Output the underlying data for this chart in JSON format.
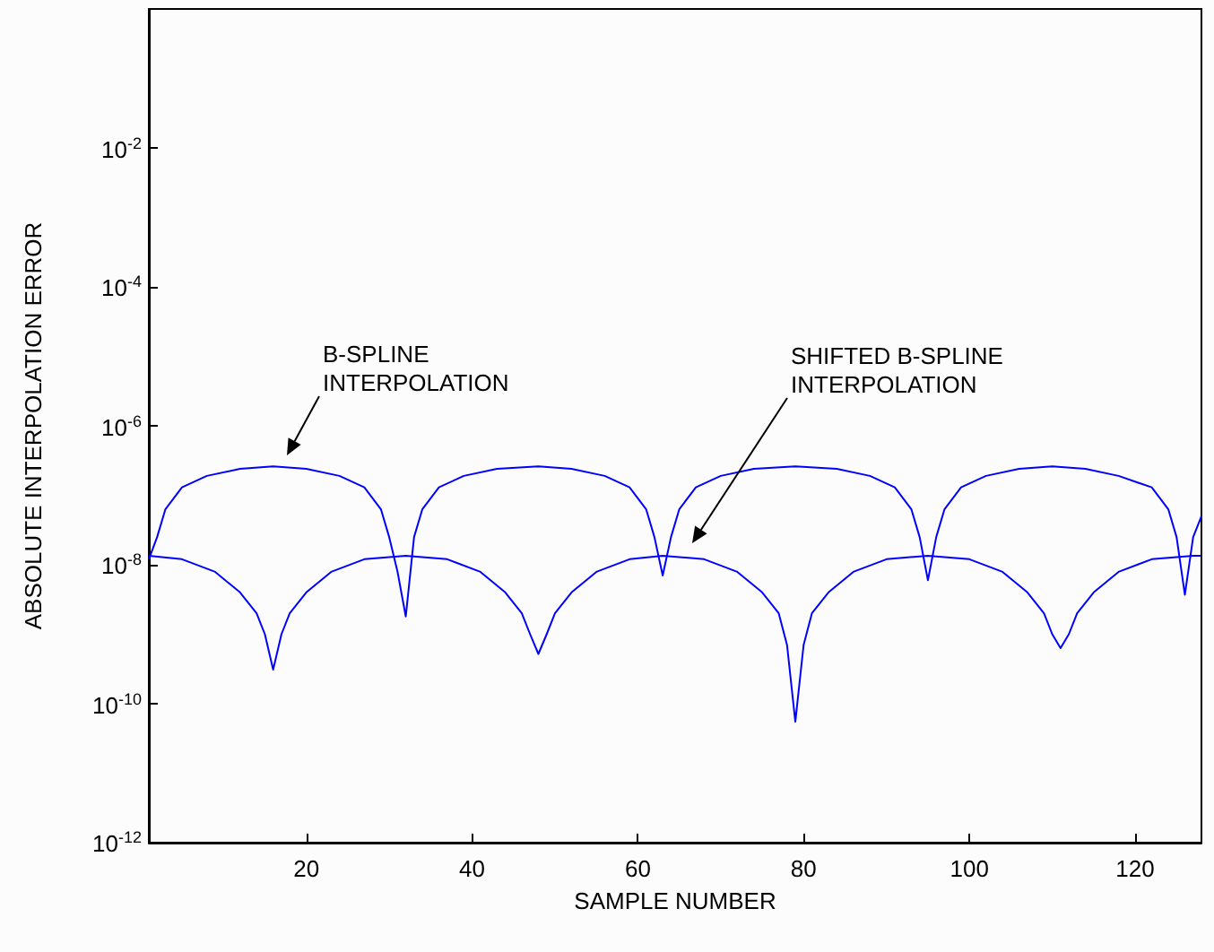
{
  "chart_data": {
    "type": "line",
    "xlabel": "SAMPLE NUMBER",
    "ylabel": "ABSOLUTE INTERPOLATION ERROR",
    "log": "y",
    "grid": false,
    "marker": "none",
    "line_style": "solid",
    "xlim": [
      1,
      128
    ],
    "xticks": [
      20,
      40,
      60,
      80,
      100,
      120
    ],
    "ylim": [
      1e-12,
      1
    ],
    "yticks": [
      {
        "value": 1e-12,
        "label": "10$^{-12}$"
      },
      {
        "value": 1e-10,
        "label": "10$^{-10}$"
      },
      {
        "value": 1e-08,
        "label": "10$^{-8}$"
      },
      {
        "value": 1e-06,
        "label": "10$^{-6}$"
      },
      {
        "value": 0.0001,
        "label": "10$^{-4}$"
      },
      {
        "value": 0.01,
        "label": "10$^{-2}$"
      }
    ],
    "annotations": [
      "B-SPLINE\nINTERPOLATION",
      "SHIFTED B-SPLINE\nINTERPOLATION"
    ],
    "series": [
      {
        "color": "#0000ff",
        "x": [
          1,
          2,
          3,
          5,
          8,
          12,
          16,
          20,
          24,
          27,
          29,
          30,
          31,
          32,
          33,
          34,
          36,
          39,
          43,
          48,
          52,
          56,
          59,
          61,
          62,
          63,
          64,
          65,
          67,
          70,
          74,
          79,
          84,
          88,
          91,
          93,
          94,
          95,
          96,
          97,
          99,
          102,
          106,
          110,
          114,
          118,
          122,
          124,
          125,
          126,
          127,
          128
        ],
        "values": [
          1.2e-08,
          2.5e-08,
          6.3e-08,
          1.3e-07,
          1.9e-07,
          2.4e-07,
          2.6e-07,
          2.4e-07,
          1.9e-07,
          1.3e-07,
          6.3e-08,
          2.5e-08,
          8e-09,
          1.8e-09,
          2.5e-08,
          6.3e-08,
          1.3e-07,
          1.9e-07,
          2.4e-07,
          2.6e-07,
          2.4e-07,
          1.9e-07,
          1.3e-07,
          6.3e-08,
          2.5e-08,
          7e-09,
          2.5e-08,
          6.3e-08,
          1.3e-07,
          1.9e-07,
          2.4e-07,
          2.6e-07,
          2.4e-07,
          1.9e-07,
          1.3e-07,
          6.3e-08,
          2.5e-08,
          6e-09,
          2.5e-08,
          6.3e-08,
          1.3e-07,
          1.9e-07,
          2.4e-07,
          2.6e-07,
          2.4e-07,
          1.9e-07,
          1.3e-07,
          6.3e-08,
          2.5e-08,
          3.7e-09,
          2.5e-08,
          5e-08
        ]
      },
      {
        "color": "#0000ff",
        "x": [
          1,
          5,
          9,
          12,
          14,
          15,
          16,
          17,
          18,
          20,
          23,
          27,
          32,
          37,
          41,
          44,
          46,
          47,
          48,
          49,
          50,
          52,
          55,
          59,
          63,
          68,
          72,
          75,
          77,
          78,
          79,
          80,
          81,
          83,
          86,
          90,
          95,
          100,
          104,
          107,
          109,
          110,
          111,
          112,
          113,
          115,
          118,
          122,
          127,
          128
        ],
        "values": [
          1.35e-08,
          1.2e-08,
          7.9e-09,
          4e-09,
          2e-09,
          1e-09,
          3.1e-10,
          1e-09,
          2e-09,
          4e-09,
          7.9e-09,
          1.2e-08,
          1.35e-08,
          1.2e-08,
          7.9e-09,
          4e-09,
          2e-09,
          1e-09,
          5.2e-10,
          1e-09,
          2e-09,
          4e-09,
          7.9e-09,
          1.2e-08,
          1.35e-08,
          1.2e-08,
          7.9e-09,
          4e-09,
          2e-09,
          7e-10,
          5.5e-11,
          7e-10,
          2e-09,
          4e-09,
          7.9e-09,
          1.2e-08,
          1.35e-08,
          1.2e-08,
          7.9e-09,
          4e-09,
          2e-09,
          1e-09,
          6.3e-10,
          1e-09,
          2e-09,
          4e-09,
          7.9e-09,
          1.2e-08,
          1.35e-08,
          1.35e-08
        ]
      }
    ]
  }
}
